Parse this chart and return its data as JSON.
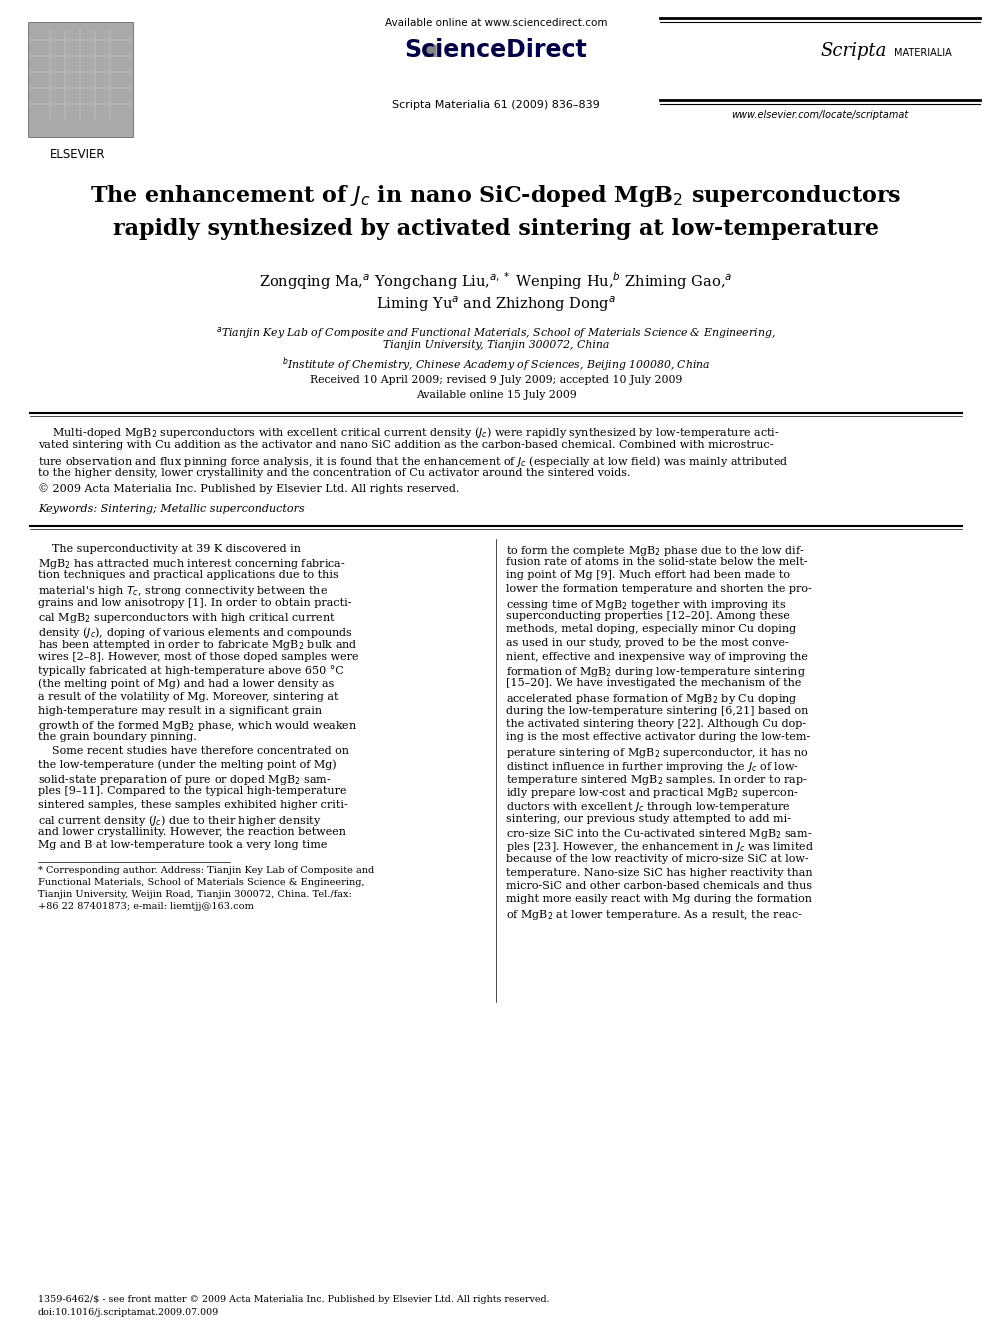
{
  "page_width": 9.92,
  "page_height": 13.23,
  "bg_color": "#ffffff",
  "available_online": "Available online at www.sciencedirect.com",
  "sciencedirect_text": "ScienceDirect",
  "journal_info": "Scripta Materialia 61 (2009) 836–839",
  "scripta_text": "Scripta",
  "scripta_text2": "MATERIALIA",
  "elsevier_url": "www.elsevier.com/locate/scriptamat",
  "elsevier_label": "ELSEVIER",
  "received": "Received 10 April 2009; revised 9 July 2009; accepted 10 July 2009",
  "available": "Available online 15 July 2009",
  "keywords": "Keywords: Sintering; Metallic superconductors",
  "footer_left_1": "1359-6462/$ - see front matter © 2009 Acta Materialia Inc. Published by Elsevier Ltd. All rights reserved.",
  "footer_left_2": "doi:10.1016/j.scriptamat.2009.07.009",
  "abstract_lines": [
    "    Multi-doped MgB$_2$ superconductors with excellent critical current density ($J_c$) were rapidly synthesized by low-temperature acti-",
    "vated sintering with Cu addition as the activator and nano SiC addition as the carbon-based chemical. Combined with microstruc-",
    "ture observation and flux pinning force analysis, it is found that the enhancement of $J_c$ (especially at low field) was mainly attributed",
    "to the higher density, lower crystallinity and the concentration of Cu activator around the sintered voids.",
    "© 2009 Acta Materialia Inc. Published by Elsevier Ltd. All rights reserved."
  ],
  "col1_lines": [
    "    The superconductivity at 39 K discovered in",
    "MgB$_2$ has attracted much interest concerning fabrica-",
    "tion techniques and practical applications due to this",
    "material's high $T_c$, strong connectivity between the",
    "grains and low anisotropy [1]. In order to obtain practi-",
    "cal MgB$_2$ superconductors with high critical current",
    "density ($J_c$), doping of various elements and compounds",
    "has been attempted in order to fabricate MgB$_2$ bulk and",
    "wires [2–8]. However, most of those doped samples were",
    "typically fabricated at high-temperature above 650 °C",
    "(the melting point of Mg) and had a lower density as",
    "a result of the volatility of Mg. Moreover, sintering at",
    "high-temperature may result in a significant grain",
    "growth of the formed MgB$_2$ phase, which would weaken",
    "the grain boundary pinning.",
    "    Some recent studies have therefore concentrated on",
    "the low-temperature (under the melting point of Mg)",
    "solid-state preparation of pure or doped MgB$_2$ sam-",
    "ples [9–11]. Compared to the typical high-temperature",
    "sintered samples, these samples exhibited higher criti-",
    "cal current density ($J_c$) due to their higher density",
    "and lower crystallinity. However, the reaction between",
    "Mg and B at low-temperature took a very long time"
  ],
  "col2_lines": [
    "to form the complete MgB$_2$ phase due to the low dif-",
    "fusion rate of atoms in the solid-state below the melt-",
    "ing point of Mg [9]. Much effort had been made to",
    "lower the formation temperature and shorten the pro-",
    "cessing time of MgB$_2$ together with improving its",
    "superconducting properties [12–20]. Among these",
    "methods, metal doping, especially minor Cu doping",
    "as used in our study, proved to be the most conve-",
    "nient, effective and inexpensive way of improving the",
    "formation of MgB$_2$ during low-temperature sintering",
    "[15–20]. We have investigated the mechanism of the",
    "accelerated phase formation of MgB$_2$ by Cu doping",
    "during the low-temperature sintering [6,21] based on",
    "the activated sintering theory [22]. Although Cu dop-",
    "ing is the most effective activator during the low-tem-",
    "perature sintering of MgB$_2$ superconductor, it has no",
    "distinct influence in further improving the $J_c$ of low-",
    "temperature sintered MgB$_2$ samples. In order to rap-",
    "idly prepare low-cost and practical MgB$_2$ supercon-",
    "ductors with excellent $J_c$ through low-temperature",
    "sintering, our previous study attempted to add mi-",
    "cro-size SiC into the Cu-activated sintered MgB$_2$ sam-",
    "ples [23]. However, the enhancement in $J_c$ was limited",
    "because of the low reactivity of micro-size SiC at low-",
    "temperature. Nano-size SiC has higher reactivity than",
    "micro-SiC and other carbon-based chemicals and thus",
    "might more easily react with Mg during the formation",
    "of MgB$_2$ at lower temperature. As a result, the reac-"
  ],
  "footnote_lines": [
    "* Corresponding author. Address: Tianjin Key Lab of Composite and",
    "Functional Materials, School of Materials Science & Engineering,",
    "Tianjin University, Weijin Road, Tianjin 300072, China. Tel./fax:",
    "+86 22 87401873; e-mail: liemtjj@163.com"
  ]
}
